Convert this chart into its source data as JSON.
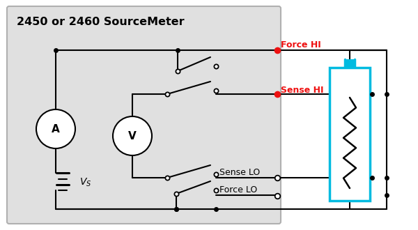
{
  "white": "#ffffff",
  "black": "#000000",
  "red": "#ee1111",
  "cyan": "#00bbe0",
  "gray_box_fill": "#e0e0e0",
  "gray_box_edge": "#b0b0b0",
  "title": "2450 or 2460 SourceMeter",
  "title_fontsize": 11.5,
  "label_force_hi": "Force HI",
  "label_sense_hi": "Sense HI",
  "label_sense_lo": "Sense LO",
  "label_force_lo": "Force LO",
  "label_A": "A",
  "label_V": "V"
}
